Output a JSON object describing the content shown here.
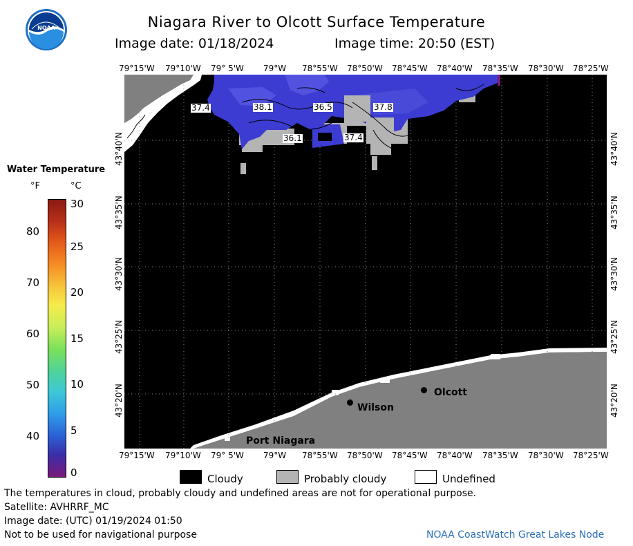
{
  "header": {
    "title": "Niagara River to Olcott Surface Temperature",
    "date_label": "Image date: 01/18/2024",
    "time_label": "Image time: 20:50 (EST)"
  },
  "logo": {
    "text": "NOAA"
  },
  "scale": {
    "title": "Water Temperature",
    "unit_f": "°F",
    "unit_c": "°C",
    "f_ticks": [
      "80",
      "70",
      "60",
      "50",
      "40"
    ],
    "c_ticks": [
      "30",
      "25",
      "20",
      "15",
      "10",
      "5",
      "0"
    ],
    "colors": [
      "#7a1a7a",
      "#3b2ea8",
      "#2c62d6",
      "#2f9fe8",
      "#3ec9d6",
      "#4fd39a",
      "#7be05a",
      "#c7ee5a",
      "#f7ec4a",
      "#f7c23a",
      "#f58a24",
      "#e2581a",
      "#b8301a",
      "#8b1a12"
    ]
  },
  "map": {
    "lon_labels": [
      "79°15'W",
      "79°10'W",
      "79° 5'W",
      "79°W",
      "78°55'W",
      "78°50'W",
      "78°45'W",
      "78°40'W",
      "78°35'W",
      "78°30'W",
      "78°25'W"
    ],
    "lat_labels": [
      "43°40'N",
      "43°35'N",
      "43°30'N",
      "43°25'N",
      "43°20'N"
    ],
    "temp_labels": [
      "37.4",
      "38.1",
      "36.5",
      "37.8",
      "36.1",
      "37.4"
    ],
    "places": [
      "Olcott",
      "Wilson",
      "Port Niagara"
    ]
  },
  "legend": {
    "cloudy": "Cloudy",
    "probably_cloudy": "Probably cloudy",
    "undefined": "Undefined"
  },
  "footer": {
    "note1": "The temperatures in cloud, probably cloudy and undefined areas are not for operational purpose.",
    "satellite": "Satellite: AVHRRF_MC",
    "utc_date": "Image date: (UTC) 01/19/2024  01:50",
    "nav": "Not to be used for navigational purpose",
    "credit": "NOAA CoastWatch Great Lakes Node"
  }
}
